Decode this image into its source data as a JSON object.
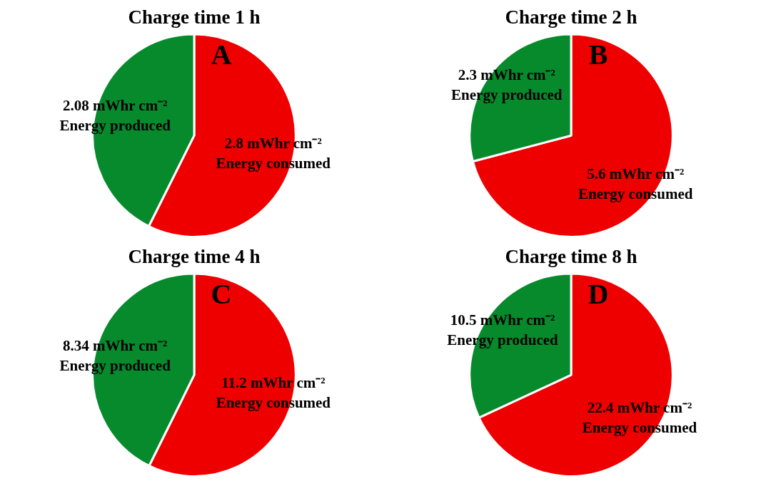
{
  "chart_data": [
    {
      "type": "pie",
      "title": "Charge time 1 h",
      "categories": [
        "Energy consumed",
        "Energy produced"
      ],
      "values": [
        2.8,
        2.08
      ],
      "colors": [
        "#ee0000",
        "#078a2c"
      ],
      "value_labels": [
        "2.8 mWhr cm⁻²",
        "2.08 mWhr cm⁻²"
      ],
      "annotations": [
        "A"
      ]
    },
    {
      "type": "pie",
      "title": "Charge time 2 h",
      "categories": [
        "Energy consumed",
        "Energy produced"
      ],
      "values": [
        5.6,
        2.3
      ],
      "colors": [
        "#ee0000",
        "#078a2c"
      ],
      "value_labels": [
        "5.6 mWhr cm⁻²",
        "2.3 mWhr cm⁻²"
      ],
      "annotations": [
        "B"
      ]
    },
    {
      "type": "pie",
      "title": "Charge time 4 h",
      "categories": [
        "Energy consumed",
        "Energy produced"
      ],
      "values": [
        11.2,
        8.34
      ],
      "colors": [
        "#ee0000",
        "#078a2c"
      ],
      "value_labels": [
        "11.2 mWhr cm⁻²",
        "8.34 mWhr cm⁻²"
      ],
      "annotations": [
        "C"
      ]
    },
    {
      "type": "pie",
      "title": "Charge time 8 h",
      "categories": [
        "Energy consumed",
        "Energy produced"
      ],
      "values": [
        22.4,
        10.5
      ],
      "colors": [
        "#ee0000",
        "#078a2c"
      ],
      "value_labels": [
        "22.4 mWhr cm⁻²",
        "10.5 mWhr cm⁻²"
      ],
      "annotations": [
        "D"
      ]
    }
  ]
}
